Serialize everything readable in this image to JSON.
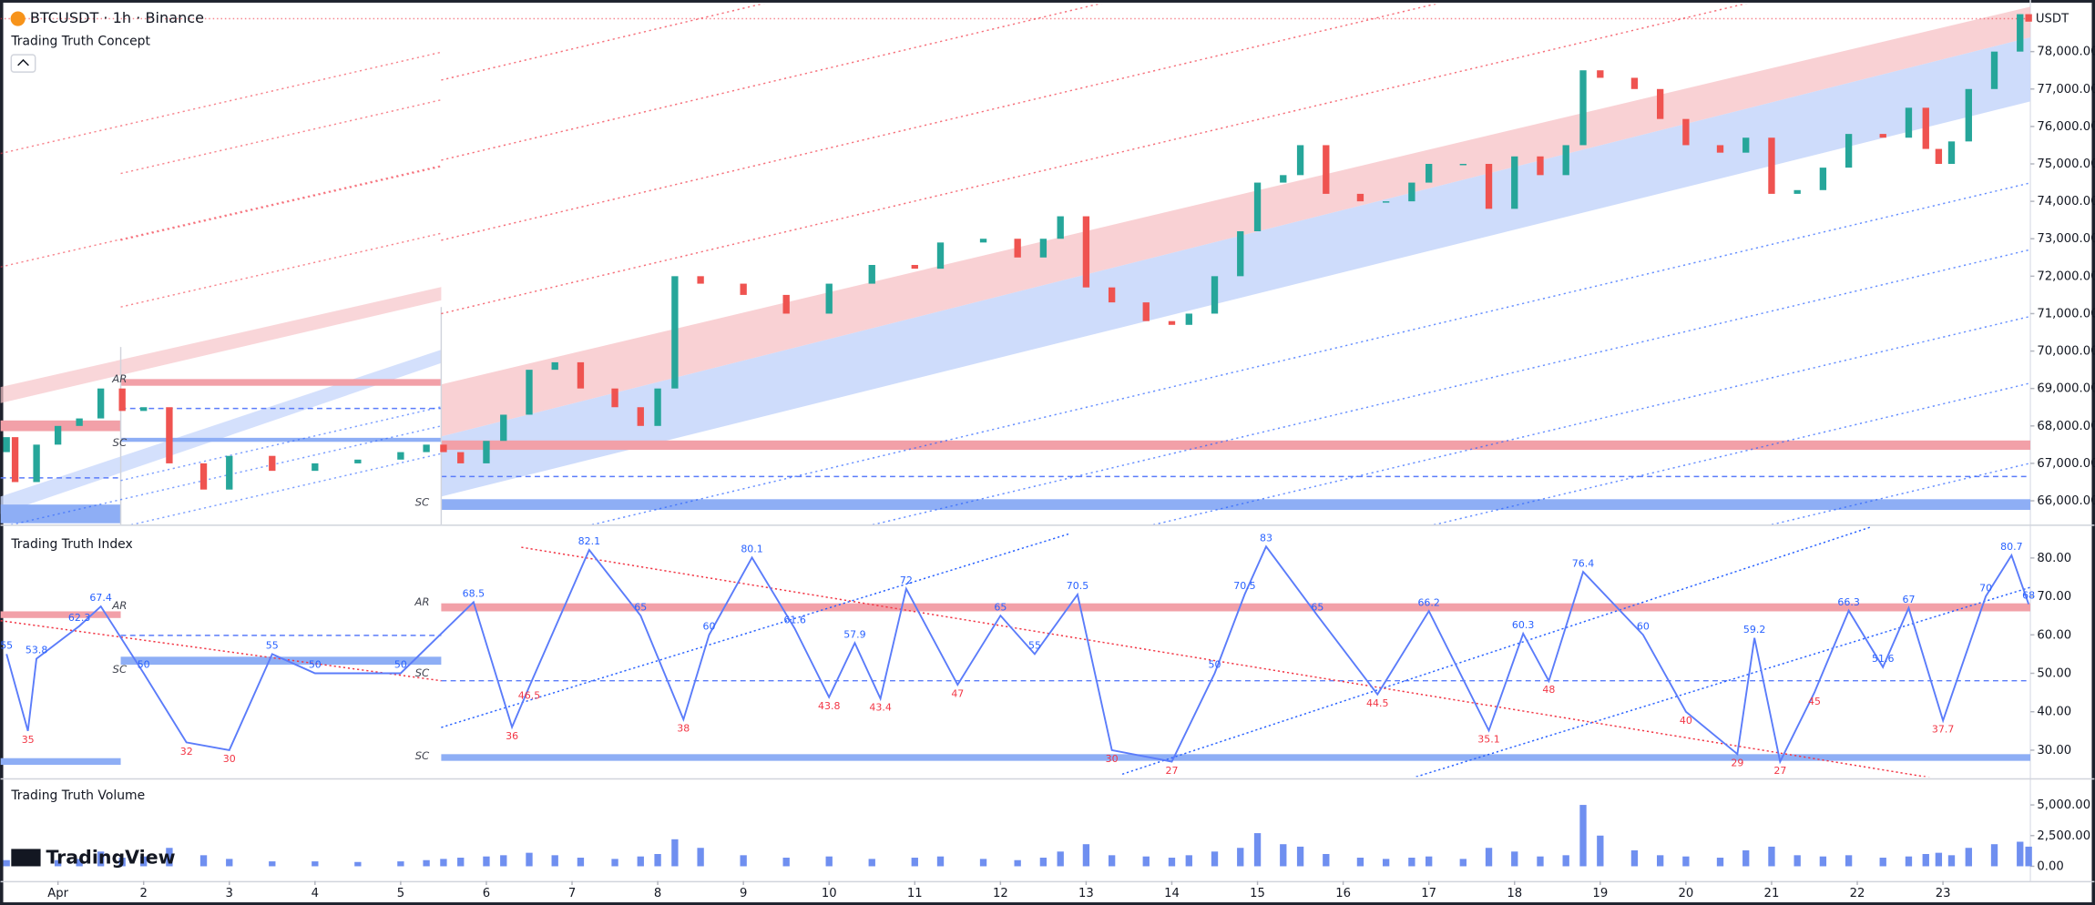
{
  "header": {
    "symbol": "BTCUSDT · 1h · Binance",
    "currency": "USDT",
    "brand": "TradingView"
  },
  "chart_data": [
    {
      "type": "candlestick",
      "title": "Trading Truth Concept",
      "x": [
        -0.6,
        -0.5,
        -0.25,
        0,
        0.25,
        0.5,
        0.75,
        1,
        1.3,
        1.7,
        2,
        2.5,
        3,
        3.5,
        4,
        4.3,
        4.5,
        4.7,
        5,
        5.2,
        5.5,
        5.8,
        6.1,
        6.5,
        6.8,
        7,
        7.2,
        7.5,
        8,
        8.5,
        9,
        9.5,
        10,
        10.3,
        10.8,
        11.2,
        11.5,
        11.7,
        12,
        12.3,
        12.7,
        13,
        13.2,
        13.5,
        13.8,
        14,
        14.3,
        14.5,
        14.8,
        15.2,
        15.5,
        15.8,
        16,
        16.4,
        16.7,
        17,
        17.3,
        17.6,
        17.8,
        18,
        18.4,
        18.7,
        19,
        19.4,
        19.7,
        20,
        20.3,
        20.6,
        20.9,
        21.3,
        21.6,
        21.8,
        21.95,
        22.1,
        22.3,
        22.6,
        22.9,
        23
      ],
      "open": [
        67300,
        67700,
        66500,
        67500,
        68000,
        68200,
        69000,
        68400,
        68500,
        67000,
        66300,
        67200,
        66800,
        67000,
        67100,
        67300,
        67500,
        67300,
        67000,
        67600,
        68300,
        69500,
        69700,
        69000,
        68500,
        68000,
        69000,
        72000,
        71800,
        71500,
        71000,
        71800,
        72300,
        72200,
        72900,
        73000,
        72500,
        73000,
        73600,
        71700,
        71300,
        70800,
        70700,
        71000,
        72000,
        73200,
        74500,
        74700,
        75500,
        74200,
        74000,
        74000,
        74500,
        75000,
        75000,
        73800,
        75200,
        74700,
        75500,
        77500,
        77300,
        77000,
        76200,
        75500,
        75300,
        75700,
        74200,
        74300,
        74900,
        75800,
        75700,
        76500,
        75400,
        75000,
        75600,
        77000,
        78000,
        79000
      ],
      "close": [
        67700,
        66500,
        67500,
        68000,
        68200,
        69000,
        68400,
        68500,
        67000,
        66300,
        67200,
        66800,
        67000,
        67100,
        67300,
        67500,
        67300,
        67000,
        67600,
        68300,
        69500,
        69700,
        69000,
        68500,
        68000,
        69000,
        72000,
        71800,
        71500,
        71000,
        71800,
        72300,
        72200,
        72900,
        73000,
        72500,
        73000,
        73600,
        71700,
        71300,
        70800,
        70700,
        71000,
        72000,
        73200,
        74500,
        74700,
        75500,
        74200,
        74000,
        74000,
        74500,
        75000,
        75000,
        73800,
        75200,
        74700,
        75500,
        77500,
        77300,
        77000,
        76200,
        75500,
        75300,
        75700,
        74200,
        74300,
        74900,
        75800,
        75700,
        76500,
        75400,
        75000,
        75600,
        77000,
        78000,
        79000,
        78800
      ],
      "up_color": "#26a69a",
      "down_color": "#ef5350",
      "xlim": [
        -0.67,
        23.02
      ],
      "xticks": [
        {
          "value": 0,
          "label": "Apr"
        },
        {
          "value": 1,
          "label": "2"
        },
        {
          "value": 2,
          "label": "3"
        },
        {
          "value": 3,
          "label": "4"
        },
        {
          "value": 4,
          "label": "5"
        },
        {
          "value": 5,
          "label": "6"
        },
        {
          "value": 6,
          "label": "7"
        },
        {
          "value": 7,
          "label": "8"
        },
        {
          "value": 8,
          "label": "9"
        },
        {
          "value": 9,
          "label": "10"
        },
        {
          "value": 10,
          "label": "11"
        },
        {
          "value": 11,
          "label": "12"
        },
        {
          "value": 12,
          "label": "13"
        },
        {
          "value": 13,
          "label": "14"
        },
        {
          "value": 14,
          "label": "15"
        },
        {
          "value": 15,
          "label": "16"
        },
        {
          "value": 16,
          "label": "17"
        },
        {
          "value": 17,
          "label": "18"
        },
        {
          "value": 18,
          "label": "19"
        },
        {
          "value": 19,
          "label": "20"
        },
        {
          "value": 20,
          "label": "21"
        },
        {
          "value": 21,
          "label": "22"
        },
        {
          "value": 22,
          "label": "23"
        }
      ],
      "ylim": [
        65400,
        79200
      ],
      "yticks": [
        {
          "value": 66000,
          "label": "66,000.00"
        },
        {
          "value": 67000,
          "label": "67,000.00"
        },
        {
          "value": 68000,
          "label": "68,000.00"
        },
        {
          "value": 69000,
          "label": "69,000.00"
        },
        {
          "value": 70000,
          "label": "70,000.00"
        },
        {
          "value": 71000,
          "label": "71,000.00"
        },
        {
          "value": 72000,
          "label": "72,000.00"
        },
        {
          "value": 73000,
          "label": "73,000.00"
        },
        {
          "value": 74000,
          "label": "74,000.00"
        },
        {
          "value": 75000,
          "label": "75,000.00"
        },
        {
          "value": 76000,
          "label": "76,000.00"
        },
        {
          "value": 77000,
          "label": "77,000.00"
        },
        {
          "value": 78000,
          "label": "78,000.00"
        }
      ],
      "annotations": [
        {
          "text": "AR",
          "x": 0.72,
          "y": 69250
        },
        {
          "text": "SC",
          "x": 0.72,
          "y": 67550
        },
        {
          "text": "SC",
          "x": 4.25,
          "y": 65950
        }
      ]
    },
    {
      "type": "line",
      "title": "Trading Truth Index",
      "x": [
        -0.6,
        -0.35,
        -0.25,
        0.25,
        0.5,
        1.0,
        1.5,
        2.0,
        2.5,
        3.0,
        4.0,
        4.85,
        5.3,
        5.5,
        6.2,
        6.8,
        7.3,
        7.6,
        8.1,
        8.6,
        9.0,
        9.3,
        9.6,
        9.9,
        10.5,
        11.0,
        11.4,
        11.9,
        12.3,
        13.0,
        13.5,
        13.85,
        14.1,
        14.7,
        15.4,
        16.0,
        16.7,
        17.1,
        17.4,
        17.8,
        18.5,
        19.0,
        19.6,
        19.8,
        20.1,
        20.5,
        20.9,
        21.3,
        21.6,
        22.0,
        22.5,
        22.8,
        23
      ],
      "values": [
        55,
        35,
        53.8,
        62.3,
        67.4,
        50,
        32,
        30,
        55,
        50,
        50,
        68.5,
        36,
        46.5,
        82.1,
        65,
        38,
        60,
        80.1,
        61.6,
        43.8,
        57.9,
        43.4,
        72,
        47,
        65,
        55,
        70.5,
        30,
        27,
        50,
        70.5,
        83,
        65,
        44.5,
        66.2,
        35.1,
        60.3,
        48,
        76.4,
        60,
        40,
        29,
        59.2,
        27,
        45,
        66.3,
        51.6,
        67,
        37.7,
        70,
        80.7,
        68
      ],
      "color": "#5b7cfa",
      "ylim": [
        23.75,
        87.3
      ],
      "yticks": [
        {
          "value": 30,
          "label": "30.00"
        },
        {
          "value": 40,
          "label": "40.00"
        },
        {
          "value": 50,
          "label": "50.00"
        },
        {
          "value": 60,
          "label": "60.00"
        },
        {
          "value": 70,
          "label": "70.00"
        },
        {
          "value": 80,
          "label": "80.00"
        }
      ],
      "annotations": [
        {
          "text": "AR",
          "x": 0.72,
          "y": 67.5
        },
        {
          "text": "SC",
          "x": 0.72,
          "y": 51
        },
        {
          "text": "AR",
          "x": 4.25,
          "y": 68.5
        },
        {
          "text": "SC",
          "x": 4.25,
          "y": 50
        },
        {
          "text": "SC",
          "x": 4.25,
          "y": 28.5
        }
      ]
    },
    {
      "type": "bar",
      "title": "Trading Truth Volume",
      "x": [
        -0.6,
        -0.5,
        -0.25,
        0,
        0.25,
        0.5,
        0.75,
        1,
        1.3,
        1.7,
        2,
        2.5,
        3,
        3.5,
        4,
        4.3,
        4.5,
        4.7,
        5,
        5.2,
        5.5,
        5.8,
        6.1,
        6.5,
        6.8,
        7,
        7.2,
        7.5,
        8,
        8.5,
        9,
        9.5,
        10,
        10.3,
        10.8,
        11.2,
        11.5,
        11.7,
        12,
        12.3,
        12.7,
        13,
        13.2,
        13.5,
        13.8,
        14,
        14.3,
        14.5,
        14.8,
        15.2,
        15.5,
        15.8,
        16,
        16.4,
        16.7,
        17,
        17.3,
        17.6,
        17.8,
        18,
        18.4,
        18.7,
        19,
        19.4,
        19.7,
        20,
        20.3,
        20.6,
        20.9,
        21.3,
        21.6,
        21.8,
        21.95,
        22.1,
        22.3,
        22.6,
        22.9,
        23
      ],
      "values": [
        500,
        700,
        600,
        500,
        600,
        1200,
        700,
        800,
        1500,
        900,
        600,
        400,
        400,
        350,
        400,
        500,
        600,
        700,
        800,
        900,
        1100,
        900,
        700,
        600,
        800,
        1000,
        2200,
        1500,
        900,
        700,
        800,
        600,
        700,
        800,
        600,
        500,
        700,
        1200,
        1800,
        900,
        800,
        700,
        900,
        1200,
        1500,
        2700,
        1800,
        1600,
        1000,
        700,
        600,
        700,
        800,
        600,
        1500,
        1200,
        800,
        900,
        5000,
        2500,
        1300,
        900,
        800,
        700,
        1300,
        1600,
        900,
        800,
        900,
        700,
        800,
        1000,
        1100,
        900,
        1500,
        1800,
        2000,
        1600
      ],
      "color": "#6f8ff0",
      "ylim": [
        -980,
        6960
      ],
      "yticks": [
        {
          "value": 0,
          "label": "0.00"
        },
        {
          "value": 2500,
          "label": "2,500.00"
        },
        {
          "value": 5000,
          "label": "5,000.00"
        }
      ]
    }
  ]
}
